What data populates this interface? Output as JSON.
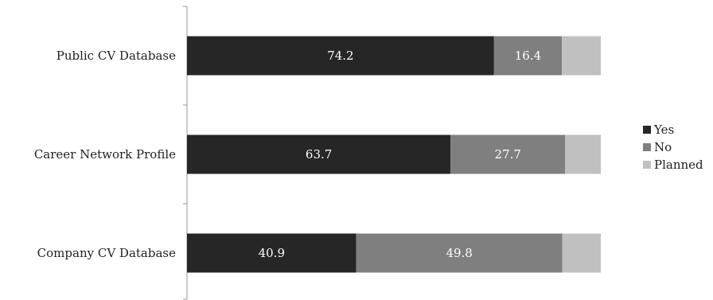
{
  "chart_data": {
    "type": "bar",
    "orientation": "horizontal",
    "stacked": true,
    "categories": [
      "Public CV Database",
      "Career Network Profile",
      "Company CV Database"
    ],
    "series": [
      {
        "name": "Yes",
        "values": [
          74.2,
          63.7,
          40.9
        ],
        "color": "#262626",
        "labeled": true
      },
      {
        "name": "No",
        "values": [
          16.4,
          27.7,
          49.8
        ],
        "color": "#7f7f7f",
        "labeled": true
      },
      {
        "name": "Planned",
        "values": [
          9.4,
          8.6,
          9.3
        ],
        "color": "#c0c0c0",
        "labeled": false
      }
    ],
    "xlim": [
      0,
      100
    ],
    "grid": false,
    "legend_position": "right"
  }
}
